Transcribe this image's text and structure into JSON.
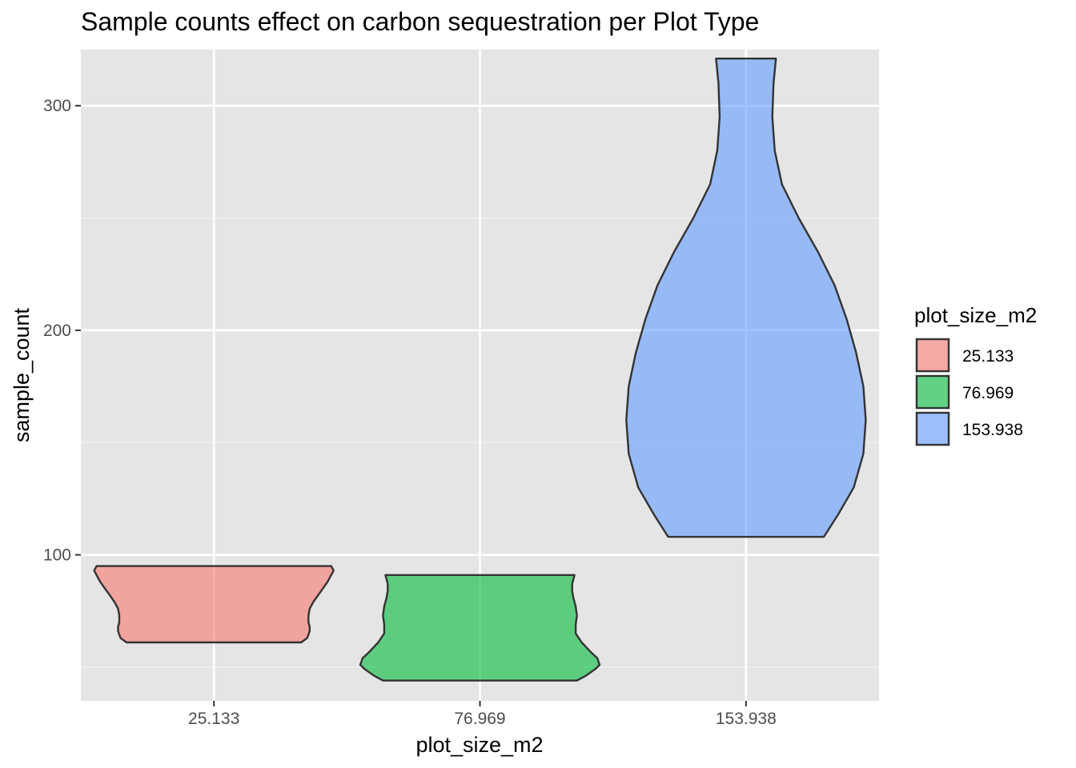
{
  "chart_data": {
    "type": "violin",
    "title": "Sample counts effect on carbon sequestration per Plot Type",
    "xlabel": "plot_size_m2",
    "ylabel": "sample_count",
    "categories": [
      "25.133",
      "76.969",
      "153.938"
    ],
    "ylim": [
      35,
      325
    ],
    "y_ticks": [
      100,
      200,
      300
    ],
    "y_minor_ticks": [
      50,
      150,
      250
    ],
    "grid": true,
    "legend": {
      "title": "plot_size_m2",
      "position": "right",
      "entries": [
        "25.133",
        "76.969",
        "153.938"
      ]
    },
    "series": [
      {
        "category": "25.133",
        "color": "#F8766D",
        "min": 61,
        "max": 95,
        "density": [
          [
            61,
            0.73
          ],
          [
            63,
            0.78
          ],
          [
            66,
            0.8
          ],
          [
            68,
            0.8
          ],
          [
            70,
            0.79
          ],
          [
            73,
            0.79
          ],
          [
            76,
            0.8
          ],
          [
            79,
            0.83
          ],
          [
            82,
            0.87
          ],
          [
            85,
            0.91
          ],
          [
            88,
            0.95
          ],
          [
            91,
            0.98
          ],
          [
            93,
            1.0
          ],
          [
            95,
            0.98
          ]
        ]
      },
      {
        "category": "76.969",
        "color": "#00BA38",
        "min": 44,
        "max": 91,
        "density": [
          [
            44,
            0.81
          ],
          [
            46,
            0.88
          ],
          [
            49,
            0.96
          ],
          [
            51,
            1.0
          ],
          [
            54,
            0.98
          ],
          [
            57,
            0.92
          ],
          [
            61,
            0.85
          ],
          [
            65,
            0.8
          ],
          [
            69,
            0.8
          ],
          [
            73,
            0.81
          ],
          [
            77,
            0.8
          ],
          [
            81,
            0.78
          ],
          [
            84,
            0.77
          ],
          [
            87,
            0.77
          ],
          [
            89,
            0.78
          ],
          [
            91,
            0.79
          ]
        ]
      },
      {
        "category": "153.938",
        "color": "#619CFF",
        "min": 108,
        "max": 321,
        "density": [
          [
            108,
            0.65
          ],
          [
            118,
            0.77
          ],
          [
            130,
            0.9
          ],
          [
            145,
            0.98
          ],
          [
            160,
            1.0
          ],
          [
            175,
            0.98
          ],
          [
            190,
            0.92
          ],
          [
            205,
            0.84
          ],
          [
            220,
            0.74
          ],
          [
            235,
            0.6
          ],
          [
            250,
            0.44
          ],
          [
            265,
            0.3
          ],
          [
            280,
            0.24
          ],
          [
            295,
            0.22
          ],
          [
            310,
            0.23
          ],
          [
            321,
            0.25
          ]
        ]
      }
    ]
  }
}
